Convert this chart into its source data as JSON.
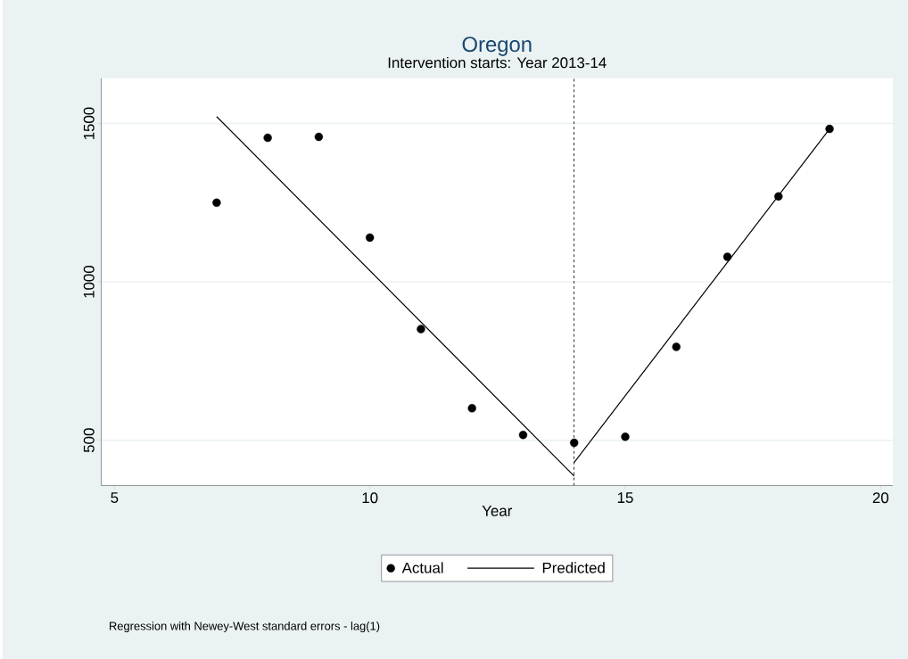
{
  "chart_data": {
    "type": "scatter",
    "title": "Oregon",
    "subtitle": "Intervention starts: Year 2013-14",
    "xlabel": "Year",
    "series": [
      {
        "name": "Actual",
        "color": "#000000",
        "marker": "circle",
        "x": [
          7,
          8,
          9,
          10,
          11,
          12,
          13,
          14,
          15,
          16,
          17,
          18,
          19
        ],
        "values": [
          1250,
          1455,
          1458,
          1140,
          851,
          601,
          517,
          492,
          511,
          795,
          1079,
          1270,
          1483
        ]
      },
      {
        "name": "Predicted",
        "type": "line",
        "color": "#000000",
        "line_style": "solid",
        "x": [
          7,
          14,
          null,
          14,
          19
        ],
        "values": [
          1522,
          387,
          null,
          430,
          1483
        ]
      }
    ],
    "xlim": [
      4.74,
      20.24
    ],
    "ylim": [
      357,
      1643
    ],
    "xticks": [
      5,
      10,
      15,
      20
    ],
    "yticks": [
      500,
      1000,
      1500
    ],
    "grid": "y",
    "legend": "bottom",
    "ref_lines": [
      {
        "axis": "x",
        "value": 14,
        "line_style": "dashed",
        "color": "#000000"
      }
    ],
    "annotations": [
      "Regression with Newey-West standard errors - lag(1)"
    ]
  }
}
